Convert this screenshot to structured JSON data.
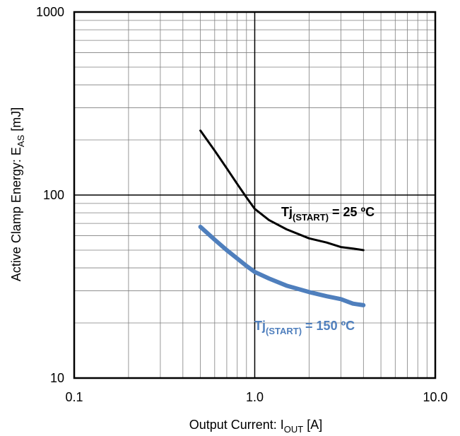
{
  "chart_data": {
    "type": "line",
    "x_scale": "log",
    "y_scale": "log",
    "xlim": [
      0.1,
      10.0
    ],
    "ylim": [
      10,
      1000
    ],
    "grid": true,
    "x_ticks": [
      {
        "value": 0.1,
        "label": "0.1"
      },
      {
        "value": 1.0,
        "label": "1.0"
      },
      {
        "value": 10.0,
        "label": "10.0"
      }
    ],
    "y_ticks": [
      {
        "value": 10,
        "label": "10"
      },
      {
        "value": 100,
        "label": "100"
      },
      {
        "value": 1000,
        "label": "1000"
      }
    ],
    "xlabel": {
      "main": "Output Current: I",
      "sub": "OUT",
      "unit": " [A]"
    },
    "ylabel": {
      "main": "Active Clamp Energy: E",
      "sub": "AS",
      "unit": " [mJ]"
    },
    "series": [
      {
        "color": "#000000",
        "x": [
          0.5,
          0.6,
          0.7,
          0.8,
          0.9,
          1.0,
          1.2,
          1.5,
          2.0,
          2.5,
          3.0,
          3.5,
          4.0
        ],
        "y": [
          225,
          175,
          140,
          115,
          97,
          84,
          73,
          65,
          58,
          55,
          52,
          51,
          50
        ],
        "annotation": {
          "main": "Tj",
          "sub": "(START)",
          "rest": " = 25 ºC",
          "color": "#000000"
        }
      },
      {
        "color": "#4f7fbd",
        "x": [
          0.5,
          0.6,
          0.7,
          0.8,
          0.9,
          1.0,
          1.2,
          1.5,
          2.0,
          2.5,
          3.0,
          3.5,
          4.0
        ],
        "y": [
          67,
          57,
          50,
          45,
          41,
          38,
          35,
          32,
          29.5,
          28,
          27,
          25.5,
          25
        ],
        "annotation": {
          "main": "Tj",
          "sub": "(START)",
          "rest": " = 150 ºC",
          "color": "#4f7fbd"
        }
      }
    ]
  }
}
